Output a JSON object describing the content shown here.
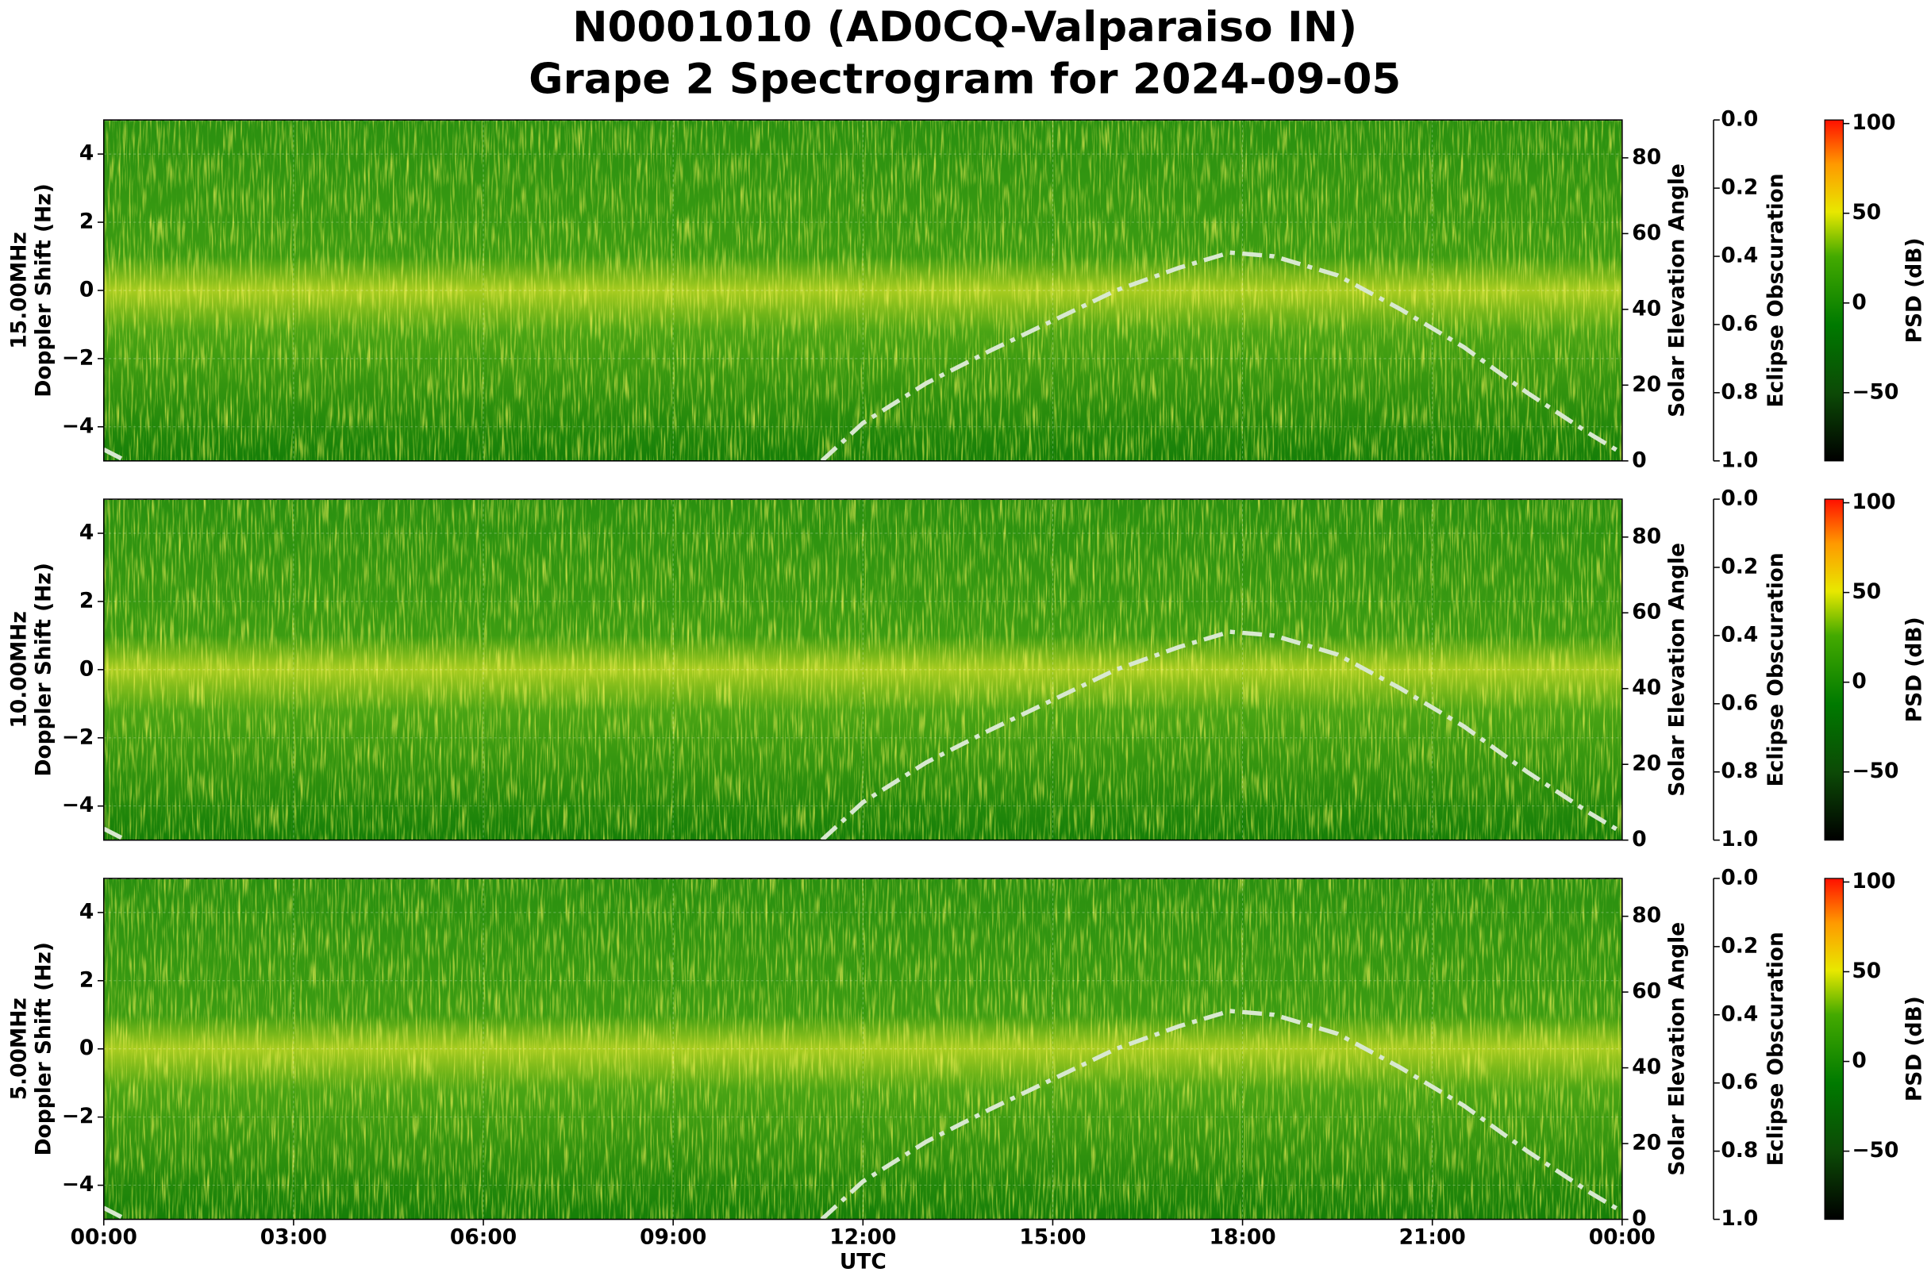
{
  "title": [
    "N0001010 (AD0CQ-Valparaiso IN)",
    "Grape 2 Spectrogram for 2024-09-05"
  ],
  "chart_data": [
    {
      "type": "spectrogram",
      "ylabel": [
        "15.00MHz",
        "Doppler Shift (Hz)"
      ],
      "y2label": "Solar Elevation Angle",
      "y3label": "Eclipse Obscuration",
      "clabel": "PSD (dB)",
      "ylim": [
        -5,
        5
      ],
      "yticks": [
        {
          "value": -4,
          "label": "−4"
        },
        {
          "value": -2,
          "label": "−2"
        },
        0,
        2,
        4
      ],
      "y2lim": [
        0,
        90
      ],
      "y2ticks": [
        0,
        20,
        40,
        60,
        80
      ],
      "y3lim": [
        1,
        0
      ],
      "y3ticks": [
        {
          "value": 0,
          "label": "0.0"
        },
        0.2,
        0.4,
        0.6,
        0.8,
        {
          "value": 1,
          "label": "1.0"
        }
      ],
      "clim": [
        -88,
        102
      ],
      "cticks": [
        {
          "value": -50,
          "label": "−50"
        },
        0,
        50,
        100
      ],
      "grid": true,
      "series": [
        {
          "color": "#d8e8d0",
          "axis": "y2",
          "x": [
            0,
            0.35,
            6,
            11.35,
            12,
            13,
            14,
            15,
            16,
            17,
            17.8,
            18.5,
            19.5,
            20.5,
            21.5,
            22.5,
            23.5,
            24
          ],
          "values": [
            3,
            0,
            null,
            0,
            10,
            20.5,
            29,
            37,
            45,
            51,
            55,
            54,
            49,
            40,
            30,
            18,
            7,
            2
          ]
        },
        {
          "color": "#ffffff",
          "axis": "y3",
          "x": [
            0,
            24
          ],
          "values": [
            0,
            0
          ]
        }
      ]
    },
    {
      "type": "spectrogram",
      "ylabel": [
        "10.00MHz",
        "Doppler Shift (Hz)"
      ],
      "y2label": "Solar Elevation Angle",
      "y3label": "Eclipse Obscuration",
      "clabel": "PSD (dB)",
      "ylim": [
        -5,
        5
      ],
      "yticks": [
        {
          "value": -4,
          "label": "−4"
        },
        {
          "value": -2,
          "label": "−2"
        },
        0,
        2,
        4
      ],
      "y2lim": [
        0,
        90
      ],
      "y2ticks": [
        0,
        20,
        40,
        60,
        80
      ],
      "y3lim": [
        1,
        0
      ],
      "y3ticks": [
        {
          "value": 0,
          "label": "0.0"
        },
        0.2,
        0.4,
        0.6,
        0.8,
        {
          "value": 1,
          "label": "1.0"
        }
      ],
      "clim": [
        -88,
        102
      ],
      "cticks": [
        {
          "value": -50,
          "label": "−50"
        },
        0,
        50,
        100
      ],
      "grid": true,
      "series": [
        {
          "color": "#d8e8d0",
          "axis": "y2",
          "x": [
            0,
            0.35,
            6,
            11.35,
            12,
            13,
            14,
            15,
            16,
            17,
            17.8,
            18.5,
            19.5,
            20.5,
            21.5,
            22.5,
            23.5,
            24
          ],
          "values": [
            3,
            0,
            null,
            0,
            10,
            20.5,
            29,
            37,
            45,
            51,
            55,
            54,
            49,
            40,
            30,
            18,
            7,
            2
          ]
        },
        {
          "color": "#ffffff",
          "axis": "y3",
          "x": [
            0,
            24
          ],
          "values": [
            0,
            0
          ]
        }
      ]
    },
    {
      "type": "spectrogram",
      "ylabel": [
        "5.00MHz",
        "Doppler Shift (Hz)"
      ],
      "y2label": "Solar Elevation Angle",
      "y3label": "Eclipse Obscuration",
      "clabel": "PSD (dB)",
      "ylim": [
        -5,
        5
      ],
      "yticks": [
        {
          "value": -4,
          "label": "−4"
        },
        {
          "value": -2,
          "label": "−2"
        },
        0,
        2,
        4
      ],
      "y2lim": [
        0,
        90
      ],
      "y2ticks": [
        0,
        20,
        40,
        60,
        80
      ],
      "y3lim": [
        1,
        0
      ],
      "y3ticks": [
        {
          "value": 0,
          "label": "0.0"
        },
        0.2,
        0.4,
        0.6,
        0.8,
        {
          "value": 1,
          "label": "1.0"
        }
      ],
      "clim": [
        -88,
        102
      ],
      "cticks": [
        {
          "value": -50,
          "label": "−50"
        },
        0,
        50,
        100
      ],
      "grid": true,
      "xlabel": "UTC",
      "xlim": [
        0,
        24
      ],
      "xticks": [
        {
          "value": 0,
          "label": "00:00"
        },
        {
          "value": 3,
          "label": "03:00"
        },
        {
          "value": 6,
          "label": "06:00"
        },
        {
          "value": 9,
          "label": "09:00"
        },
        {
          "value": 12,
          "label": "12:00"
        },
        {
          "value": 15,
          "label": "15:00"
        },
        {
          "value": 18,
          "label": "18:00"
        },
        {
          "value": 21,
          "label": "21:00"
        },
        {
          "value": 24,
          "label": "00:00"
        }
      ],
      "series": [
        {
          "color": "#d8e8d0",
          "axis": "y2",
          "x": [
            0,
            0.35,
            6,
            11.35,
            12,
            13,
            14,
            15,
            16,
            17,
            17.8,
            18.5,
            19.5,
            20.5,
            21.5,
            22.5,
            23.5,
            24
          ],
          "values": [
            3,
            0,
            null,
            0,
            10,
            20.5,
            29,
            37,
            45,
            51,
            55,
            54,
            49,
            40,
            30,
            18,
            7,
            2
          ]
        },
        {
          "color": "#ffffff",
          "axis": "y3",
          "x": [
            0,
            24
          ],
          "values": [
            0,
            0
          ]
        }
      ]
    }
  ]
}
